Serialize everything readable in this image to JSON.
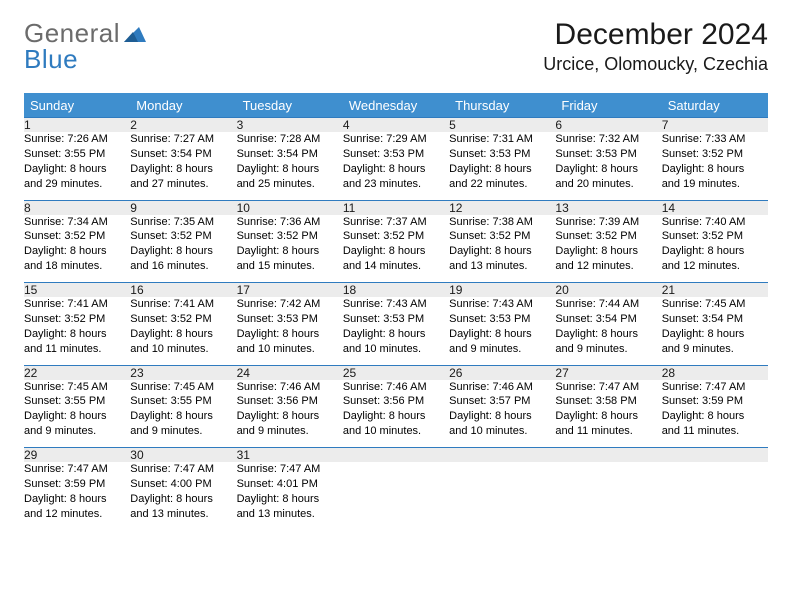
{
  "logo": {
    "general": "General",
    "blue": "Blue"
  },
  "title": "December 2024",
  "subtitle": "Urcice, Olomoucky, Czechia",
  "colors": {
    "header_bg": "#3f8fcf",
    "header_text": "#ffffff",
    "daynum_bg": "#ececec",
    "daynum_border": "#2f7bbf",
    "body_text": "#000000",
    "logo_gray": "#6b6b6b",
    "logo_blue": "#2f7bbf"
  },
  "daysOfWeek": [
    "Sunday",
    "Monday",
    "Tuesday",
    "Wednesday",
    "Thursday",
    "Friday",
    "Saturday"
  ],
  "weeks": [
    {
      "nums": [
        "1",
        "2",
        "3",
        "4",
        "5",
        "6",
        "7"
      ],
      "cells": [
        {
          "sunrise": "Sunrise: 7:26 AM",
          "sunset": "Sunset: 3:55 PM",
          "day1": "Daylight: 8 hours",
          "day2": "and 29 minutes."
        },
        {
          "sunrise": "Sunrise: 7:27 AM",
          "sunset": "Sunset: 3:54 PM",
          "day1": "Daylight: 8 hours",
          "day2": "and 27 minutes."
        },
        {
          "sunrise": "Sunrise: 7:28 AM",
          "sunset": "Sunset: 3:54 PM",
          "day1": "Daylight: 8 hours",
          "day2": "and 25 minutes."
        },
        {
          "sunrise": "Sunrise: 7:29 AM",
          "sunset": "Sunset: 3:53 PM",
          "day1": "Daylight: 8 hours",
          "day2": "and 23 minutes."
        },
        {
          "sunrise": "Sunrise: 7:31 AM",
          "sunset": "Sunset: 3:53 PM",
          "day1": "Daylight: 8 hours",
          "day2": "and 22 minutes."
        },
        {
          "sunrise": "Sunrise: 7:32 AM",
          "sunset": "Sunset: 3:53 PM",
          "day1": "Daylight: 8 hours",
          "day2": "and 20 minutes."
        },
        {
          "sunrise": "Sunrise: 7:33 AM",
          "sunset": "Sunset: 3:52 PM",
          "day1": "Daylight: 8 hours",
          "day2": "and 19 minutes."
        }
      ]
    },
    {
      "nums": [
        "8",
        "9",
        "10",
        "11",
        "12",
        "13",
        "14"
      ],
      "cells": [
        {
          "sunrise": "Sunrise: 7:34 AM",
          "sunset": "Sunset: 3:52 PM",
          "day1": "Daylight: 8 hours",
          "day2": "and 18 minutes."
        },
        {
          "sunrise": "Sunrise: 7:35 AM",
          "sunset": "Sunset: 3:52 PM",
          "day1": "Daylight: 8 hours",
          "day2": "and 16 minutes."
        },
        {
          "sunrise": "Sunrise: 7:36 AM",
          "sunset": "Sunset: 3:52 PM",
          "day1": "Daylight: 8 hours",
          "day2": "and 15 minutes."
        },
        {
          "sunrise": "Sunrise: 7:37 AM",
          "sunset": "Sunset: 3:52 PM",
          "day1": "Daylight: 8 hours",
          "day2": "and 14 minutes."
        },
        {
          "sunrise": "Sunrise: 7:38 AM",
          "sunset": "Sunset: 3:52 PM",
          "day1": "Daylight: 8 hours",
          "day2": "and 13 minutes."
        },
        {
          "sunrise": "Sunrise: 7:39 AM",
          "sunset": "Sunset: 3:52 PM",
          "day1": "Daylight: 8 hours",
          "day2": "and 12 minutes."
        },
        {
          "sunrise": "Sunrise: 7:40 AM",
          "sunset": "Sunset: 3:52 PM",
          "day1": "Daylight: 8 hours",
          "day2": "and 12 minutes."
        }
      ]
    },
    {
      "nums": [
        "15",
        "16",
        "17",
        "18",
        "19",
        "20",
        "21"
      ],
      "cells": [
        {
          "sunrise": "Sunrise: 7:41 AM",
          "sunset": "Sunset: 3:52 PM",
          "day1": "Daylight: 8 hours",
          "day2": "and 11 minutes."
        },
        {
          "sunrise": "Sunrise: 7:41 AM",
          "sunset": "Sunset: 3:52 PM",
          "day1": "Daylight: 8 hours",
          "day2": "and 10 minutes."
        },
        {
          "sunrise": "Sunrise: 7:42 AM",
          "sunset": "Sunset: 3:53 PM",
          "day1": "Daylight: 8 hours",
          "day2": "and 10 minutes."
        },
        {
          "sunrise": "Sunrise: 7:43 AM",
          "sunset": "Sunset: 3:53 PM",
          "day1": "Daylight: 8 hours",
          "day2": "and 10 minutes."
        },
        {
          "sunrise": "Sunrise: 7:43 AM",
          "sunset": "Sunset: 3:53 PM",
          "day1": "Daylight: 8 hours",
          "day2": "and 9 minutes."
        },
        {
          "sunrise": "Sunrise: 7:44 AM",
          "sunset": "Sunset: 3:54 PM",
          "day1": "Daylight: 8 hours",
          "day2": "and 9 minutes."
        },
        {
          "sunrise": "Sunrise: 7:45 AM",
          "sunset": "Sunset: 3:54 PM",
          "day1": "Daylight: 8 hours",
          "day2": "and 9 minutes."
        }
      ]
    },
    {
      "nums": [
        "22",
        "23",
        "24",
        "25",
        "26",
        "27",
        "28"
      ],
      "cells": [
        {
          "sunrise": "Sunrise: 7:45 AM",
          "sunset": "Sunset: 3:55 PM",
          "day1": "Daylight: 8 hours",
          "day2": "and 9 minutes."
        },
        {
          "sunrise": "Sunrise: 7:45 AM",
          "sunset": "Sunset: 3:55 PM",
          "day1": "Daylight: 8 hours",
          "day2": "and 9 minutes."
        },
        {
          "sunrise": "Sunrise: 7:46 AM",
          "sunset": "Sunset: 3:56 PM",
          "day1": "Daylight: 8 hours",
          "day2": "and 9 minutes."
        },
        {
          "sunrise": "Sunrise: 7:46 AM",
          "sunset": "Sunset: 3:56 PM",
          "day1": "Daylight: 8 hours",
          "day2": "and 10 minutes."
        },
        {
          "sunrise": "Sunrise: 7:46 AM",
          "sunset": "Sunset: 3:57 PM",
          "day1": "Daylight: 8 hours",
          "day2": "and 10 minutes."
        },
        {
          "sunrise": "Sunrise: 7:47 AM",
          "sunset": "Sunset: 3:58 PM",
          "day1": "Daylight: 8 hours",
          "day2": "and 11 minutes."
        },
        {
          "sunrise": "Sunrise: 7:47 AM",
          "sunset": "Sunset: 3:59 PM",
          "day1": "Daylight: 8 hours",
          "day2": "and 11 minutes."
        }
      ]
    },
    {
      "nums": [
        "29",
        "30",
        "31",
        "",
        "",
        "",
        ""
      ],
      "cells": [
        {
          "sunrise": "Sunrise: 7:47 AM",
          "sunset": "Sunset: 3:59 PM",
          "day1": "Daylight: 8 hours",
          "day2": "and 12 minutes."
        },
        {
          "sunrise": "Sunrise: 7:47 AM",
          "sunset": "Sunset: 4:00 PM",
          "day1": "Daylight: 8 hours",
          "day2": "and 13 minutes."
        },
        {
          "sunrise": "Sunrise: 7:47 AM",
          "sunset": "Sunset: 4:01 PM",
          "day1": "Daylight: 8 hours",
          "day2": "and 13 minutes."
        },
        null,
        null,
        null,
        null
      ]
    }
  ]
}
